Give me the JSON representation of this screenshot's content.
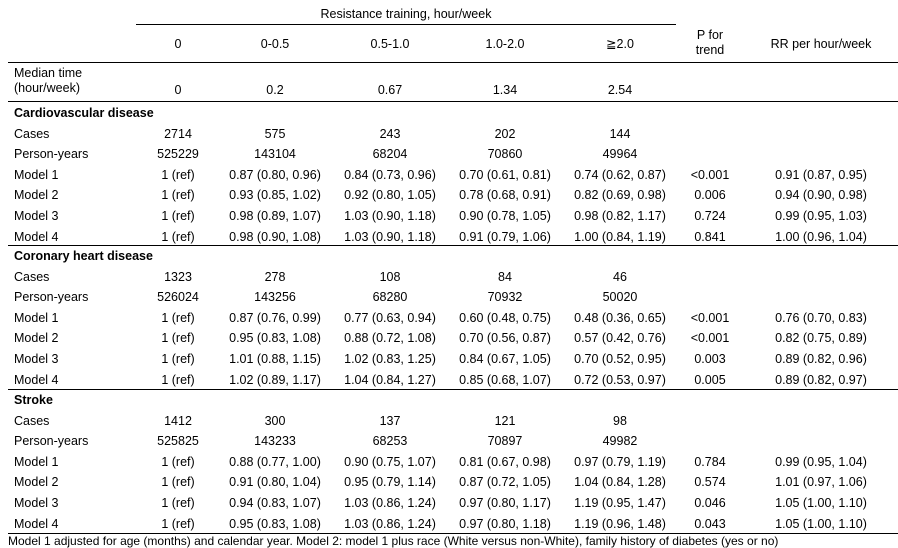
{
  "header": {
    "group_title": "Resistance training, hour/week",
    "columns": [
      "0",
      "0-0.5",
      "0.5-1.0",
      "1.0-2.0",
      "≧2.0"
    ],
    "p_trend_line1": "P for",
    "p_trend_line2": "trend",
    "rr_label": "RR per hour/week"
  },
  "median": {
    "label_line1": "Median time",
    "label_line2": "(hour/week)",
    "values": [
      "0",
      "0.2",
      "0.67",
      "1.34",
      "2.54"
    ]
  },
  "sections": [
    {
      "title": "Cardiovascular disease",
      "rows": [
        {
          "label": "Cases",
          "values": [
            "2714",
            "575",
            "243",
            "202",
            "144"
          ],
          "p": "",
          "rr": ""
        },
        {
          "label": "Person-years",
          "values": [
            "525229",
            "143104",
            "68204",
            "70860",
            "49964"
          ],
          "p": "",
          "rr": ""
        },
        {
          "label": "Model 1",
          "values": [
            "1 (ref)",
            "0.87 (0.80, 0.96)",
            "0.84 (0.73, 0.96)",
            "0.70 (0.61, 0.81)",
            "0.74 (0.62, 0.87)"
          ],
          "p": "<0.001",
          "rr": "0.91 (0.87, 0.95)"
        },
        {
          "label": "Model 2",
          "values": [
            "1 (ref)",
            "0.93 (0.85, 1.02)",
            "0.92 (0.80, 1.05)",
            "0.78 (0.68, 0.91)",
            "0.82 (0.69, 0.98)"
          ],
          "p": "0.006",
          "rr": "0.94 (0.90, 0.98)"
        },
        {
          "label": "Model 3",
          "values": [
            "1 (ref)",
            "0.98 (0.89, 1.07)",
            "1.03 (0.90, 1.18)",
            "0.90 (0.78, 1.05)",
            "0.98 (0.82, 1.17)"
          ],
          "p": "0.724",
          "rr": "0.99 (0.95, 1.03)"
        },
        {
          "label": "Model 4",
          "values": [
            "1 (ref)",
            "0.98 (0.90, 1.08)",
            "1.03 (0.90, 1.18)",
            "0.91 (0.79, 1.06)",
            "1.00 (0.84, 1.19)"
          ],
          "p": "0.841",
          "rr": "1.00 (0.96, 1.04)"
        }
      ]
    },
    {
      "title": "Coronary heart disease",
      "rows": [
        {
          "label": "Cases",
          "values": [
            "1323",
            "278",
            "108",
            "84",
            "46"
          ],
          "p": "",
          "rr": ""
        },
        {
          "label": "Person-years",
          "values": [
            "526024",
            "143256",
            "68280",
            "70932",
            "50020"
          ],
          "p": "",
          "rr": ""
        },
        {
          "label": "Model 1",
          "values": [
            "1 (ref)",
            "0.87 (0.76, 0.99)",
            "0.77 (0.63, 0.94)",
            "0.60 (0.48, 0.75)",
            "0.48 (0.36, 0.65)"
          ],
          "p": "<0.001",
          "rr": "0.76 (0.70, 0.83)"
        },
        {
          "label": "Model 2",
          "values": [
            "1 (ref)",
            "0.95 (0.83, 1.08)",
            "0.88 (0.72, 1.08)",
            "0.70 (0.56, 0.87)",
            "0.57 (0.42, 0.76)"
          ],
          "p": "<0.001",
          "rr": "0.82 (0.75, 0.89)"
        },
        {
          "label": "Model 3",
          "values": [
            "1 (ref)",
            "1.01 (0.88, 1.15)",
            "1.02 (0.83, 1.25)",
            "0.84 (0.67, 1.05)",
            "0.70 (0.52, 0.95)"
          ],
          "p": "0.003",
          "rr": "0.89 (0.82, 0.96)"
        },
        {
          "label": "Model 4",
          "values": [
            "1 (ref)",
            "1.02 (0.89, 1.17)",
            "1.04 (0.84, 1.27)",
            "0.85 (0.68, 1.07)",
            "0.72 (0.53, 0.97)"
          ],
          "p": "0.005",
          "rr": "0.89 (0.82, 0.97)"
        }
      ]
    },
    {
      "title": "Stroke",
      "rows": [
        {
          "label": "Cases",
          "values": [
            "1412",
            "300",
            "137",
            "121",
            "98"
          ],
          "p": "",
          "rr": ""
        },
        {
          "label": "Person-years",
          "values": [
            "525825",
            "143233",
            "68253",
            "70897",
            "49982"
          ],
          "p": "",
          "rr": ""
        },
        {
          "label": "Model 1",
          "values": [
            "1 (ref)",
            "0.88 (0.77, 1.00)",
            "0.90 (0.75, 1.07)",
            "0.81 (0.67, 0.98)",
            "0.97 (0.79, 1.19)"
          ],
          "p": "0.784",
          "rr": "0.99 (0.95, 1.04)"
        },
        {
          "label": "Model 2",
          "values": [
            "1 (ref)",
            "0.91 (0.80, 1.04)",
            "0.95 (0.79, 1.14)",
            "0.87 (0.72, 1.05)",
            "1.04 (0.84, 1.28)"
          ],
          "p": "0.574",
          "rr": "1.01 (0.97, 1.06)"
        },
        {
          "label": "Model 3",
          "values": [
            "1 (ref)",
            "0.94 (0.83, 1.07)",
            "1.03 (0.86, 1.24)",
            "0.97 (0.80, 1.17)",
            "1.19 (0.95, 1.47)"
          ],
          "p": "0.046",
          "rr": "1.05 (1.00, 1.10)"
        },
        {
          "label": "Model 4",
          "values": [
            "1 (ref)",
            "0.95 (0.83, 1.08)",
            "1.03 (0.86, 1.24)",
            "0.97 (0.80, 1.18)",
            "1.19 (0.96, 1.48)"
          ],
          "p": "0.043",
          "rr": "1.05 (1.00, 1.10)"
        }
      ]
    }
  ],
  "footnote": "Model 1 adjusted for age (months) and calendar year. Model 2: model 1 plus race (White versus non-White), family history of diabetes (yes or no)"
}
